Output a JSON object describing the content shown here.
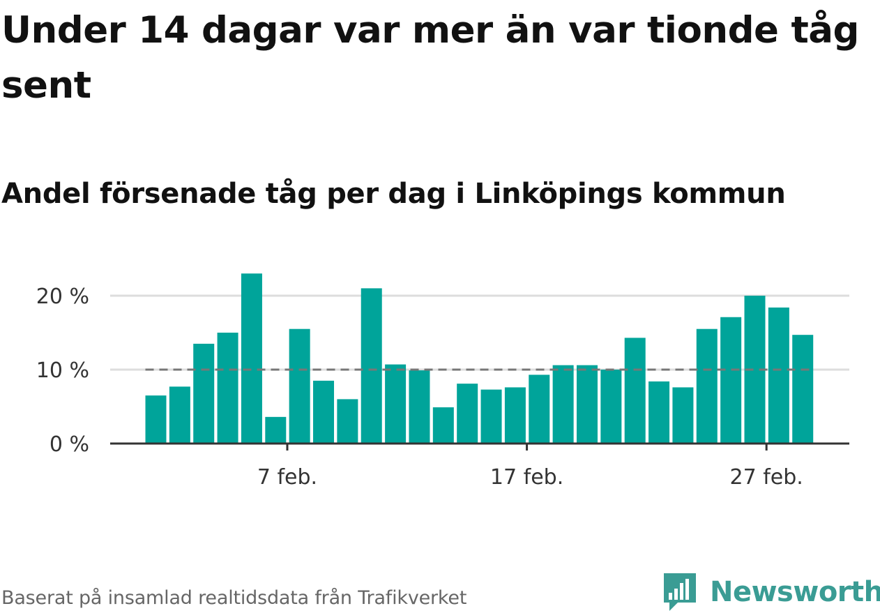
{
  "header": {
    "title": "Under 14 dagar var mer än var tionde tåg sent",
    "subtitle": "Andel försenade tåg per dag i Linköpings kommun"
  },
  "footer": {
    "source": "Baserat på insamlad realtidsdata från Trafikverket",
    "brand": "Newsworthy"
  },
  "colors": {
    "bar": "#00a49a",
    "grid": "#dddddd",
    "axis": "#333333",
    "reference_line": "#777777",
    "brand": "#3a9c94"
  },
  "icons": {
    "brand": "newsworthy-logo-icon"
  },
  "chart_data": {
    "type": "bar",
    "x_start": "1 feb.",
    "categories": [
      "1 feb.",
      "2 feb.",
      "3 feb.",
      "4 feb.",
      "5 feb.",
      "6 feb.",
      "7 feb.",
      "8 feb.",
      "9 feb.",
      "10 feb.",
      "11 feb.",
      "12 feb.",
      "13 feb.",
      "14 feb.",
      "15 feb.",
      "16 feb.",
      "17 feb.",
      "18 feb.",
      "19 feb.",
      "20 feb.",
      "21 feb.",
      "22 feb.",
      "23 feb.",
      "24 feb.",
      "25 feb.",
      "26 feb.",
      "27 feb.",
      "28 feb."
    ],
    "values": [
      6.5,
      7.7,
      13.5,
      15.0,
      23.0,
      3.6,
      15.5,
      8.5,
      6.0,
      21.0,
      10.7,
      9.9,
      4.9,
      8.1,
      7.3,
      7.6,
      9.3,
      10.6,
      10.6,
      10.0,
      14.3,
      8.4,
      7.6,
      15.5,
      17.1,
      20.0,
      18.4,
      14.7
    ],
    "reference_line": 10,
    "ylim": [
      0,
      23
    ],
    "yticks": [
      0,
      10,
      20
    ],
    "ytick_labels": [
      "0 %",
      "10 %",
      "20 %"
    ],
    "xticks": [
      "7 feb.",
      "17 feb.",
      "27 feb."
    ],
    "xlabel": "",
    "ylabel": "",
    "grid": true
  }
}
